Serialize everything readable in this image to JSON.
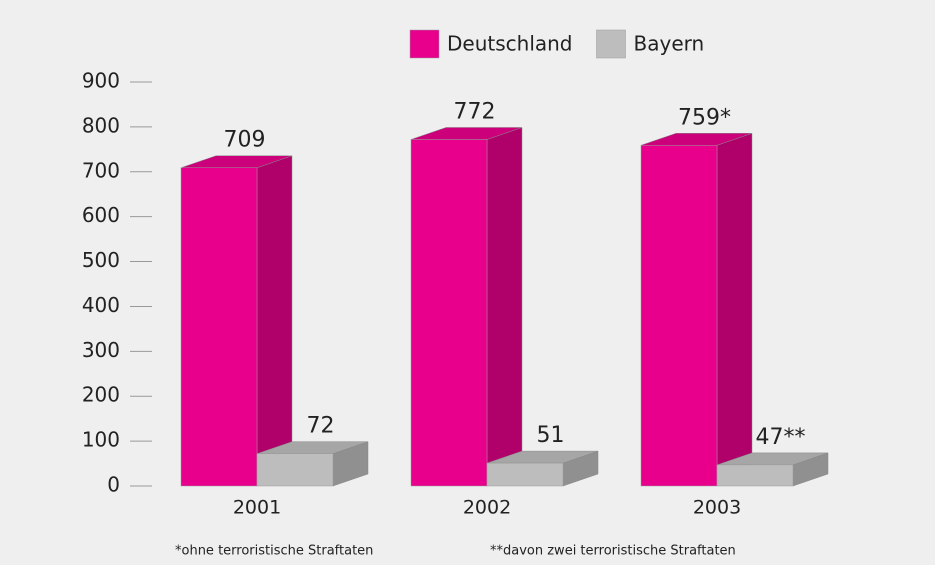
{
  "chart_data": {
    "type": "bar3d",
    "categories": [
      "2001",
      "2002",
      "2003"
    ],
    "series": [
      {
        "name": "Deutschland",
        "color": "#e8008c",
        "values": [
          709,
          772,
          759
        ],
        "value_labels": [
          "709",
          "772",
          "759*"
        ]
      },
      {
        "name": "Bayern",
        "color": "#bdbdbd",
        "values": [
          72,
          51,
          47
        ],
        "value_labels": [
          "72",
          "51",
          "47**"
        ]
      }
    ],
    "ylim": [
      0,
      900
    ],
    "yticks": [
      0,
      100,
      200,
      300,
      400,
      500,
      600,
      700,
      800,
      900
    ],
    "legend": "top",
    "annotations": [
      "*ohne terroristische Straftaten",
      "**davon zwei terroristische Straftaten"
    ]
  }
}
